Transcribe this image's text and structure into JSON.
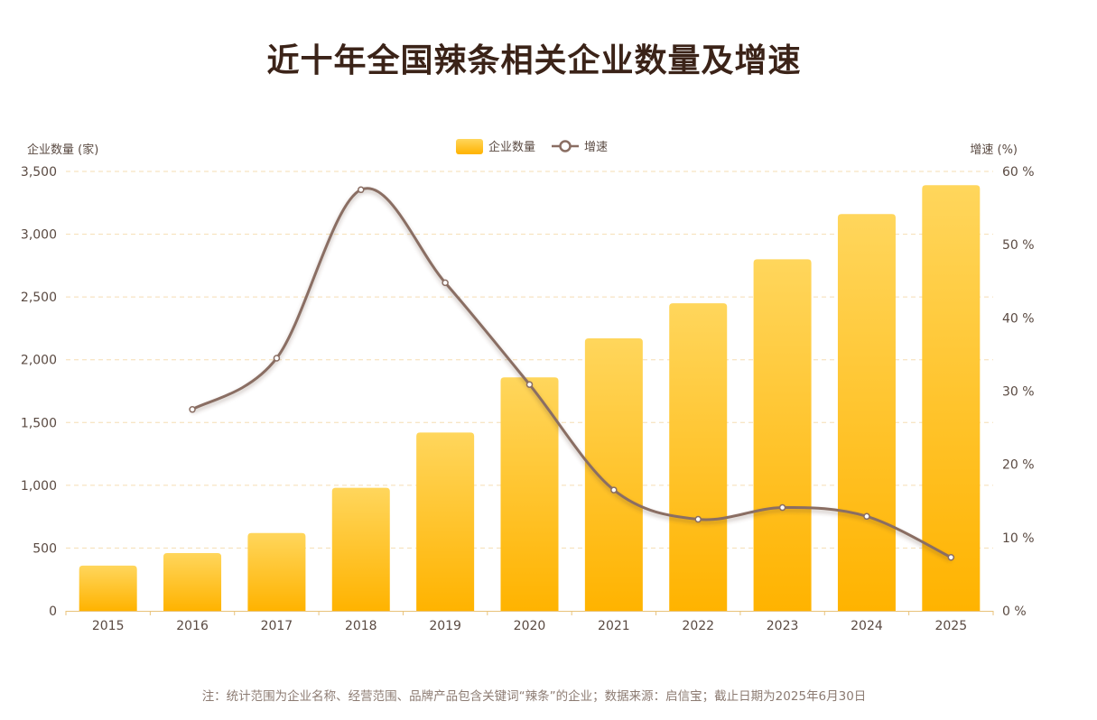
{
  "title": "近十年全国辣条相关企业数量及增速",
  "footnote": "注：统计范围为企业名称、经营范围、品牌产品包含关键词“辣条”的企业；数据来源：启信宝；截止日期为2025年6月30日",
  "colors": {
    "bar_top": "#FFD65C",
    "bar_bottom": "#FFB300",
    "line": "#8A6E63",
    "axis_text": "#5a4a42",
    "grid": "#F5DEB3"
  },
  "chart_data": {
    "type": "bar",
    "categories": [
      "2015",
      "2016",
      "2017",
      "2018",
      "2019",
      "2020",
      "2021",
      "2022",
      "2023",
      "2024",
      "2025"
    ],
    "series": [
      {
        "name": "企业数量",
        "type": "bar",
        "axis": "left",
        "values": [
          360,
          460,
          620,
          980,
          1420,
          1860,
          2170,
          2450,
          2800,
          3160,
          3390
        ]
      },
      {
        "name": "增速",
        "type": "line",
        "axis": "right",
        "values": [
          null,
          27.5,
          34.5,
          57.5,
          44.8,
          30.9,
          16.5,
          12.5,
          14.1,
          12.9,
          7.3
        ]
      }
    ],
    "y_left": {
      "label": "企业数量 (家)",
      "range": [
        0,
        3500
      ],
      "ticks": [
        "0",
        "500",
        "1,000",
        "1,500",
        "2,000",
        "2,500",
        "3,000",
        "3,500"
      ]
    },
    "y_right": {
      "label": "增速 (%)",
      "range": [
        0,
        60
      ],
      "ticks": [
        "0 %",
        "10 %",
        "20 %",
        "30 %",
        "40 %",
        "50 %",
        "60 %"
      ]
    },
    "grid": true,
    "legend_position": "top-center"
  }
}
